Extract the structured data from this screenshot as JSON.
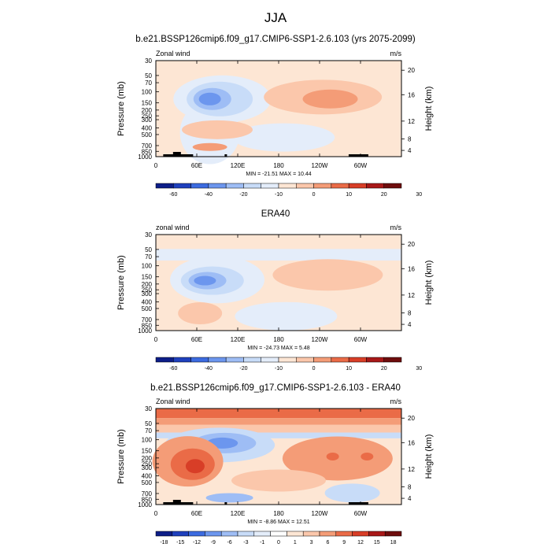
{
  "main_title": "JJA",
  "colors": {
    "main": [
      "#0d1e88",
      "#1f40bd",
      "#3c6be0",
      "#6c96ee",
      "#9ebdf5",
      "#c8dcf8",
      "#e4edfa",
      "#fde6d4",
      "#fbc7ab",
      "#f49c77",
      "#ea6b47",
      "#d83e27",
      "#a81818",
      "#6e0d0d"
    ],
    "diff": [
      "#0d1e88",
      "#1f40bd",
      "#3c6be0",
      "#6c96ee",
      "#9ebdf5",
      "#c8dcf8",
      "#e4edfa",
      "#ffffff",
      "#fde6d4",
      "#fbc7ab",
      "#f49c77",
      "#ea6b47",
      "#d83e27",
      "#a81818",
      "#6e0d0d"
    ]
  },
  "chart_data": [
    {
      "type": "heatmap",
      "title": "b.e21.BSSP126cmip6.f09_g17.CMIP6-SSP1-2.6.103 (yrs 2075-2099)",
      "left_label": "Zonal wind",
      "right_label": "m/s",
      "ylabel": "Pressure (mb)",
      "ylabel_right": "Height (km)",
      "x_ticks": [
        "0",
        "60E",
        "120E",
        "180",
        "120W",
        "60W"
      ],
      "y_ticks": [
        "30",
        "50",
        "70",
        "100",
        "150",
        "200",
        "250",
        "300",
        "400",
        "500",
        "700",
        "850",
        "1000"
      ],
      "height_ticks": [
        "20",
        "16",
        "12",
        "8",
        "4"
      ],
      "stats": "MIN = -21.51  MAX =  10.44",
      "colorbar_labels": [
        "-60",
        "-40",
        "-20",
        "-10",
        "0",
        "10",
        "20",
        "30"
      ]
    },
    {
      "type": "heatmap",
      "title": "ERA40",
      "left_label": "zonal wind",
      "right_label": "m/s",
      "ylabel": "Pressure (mb)",
      "ylabel_right": "Height (km)",
      "x_ticks": [
        "0",
        "60E",
        "120E",
        "180",
        "120W",
        "60W"
      ],
      "y_ticks": [
        "30",
        "50",
        "70",
        "100",
        "150",
        "200",
        "250",
        "300",
        "400",
        "500",
        "700",
        "850",
        "1000"
      ],
      "height_ticks": [
        "20",
        "16",
        "12",
        "8",
        "4"
      ],
      "stats": "MIN = -24.73  MAX =   5.48",
      "colorbar_labels": [
        "-60",
        "-40",
        "-20",
        "-10",
        "0",
        "10",
        "20",
        "30"
      ]
    },
    {
      "type": "heatmap",
      "title": "b.e21.BSSP126cmip6.f09_g17.CMIP6-SSP1-2.6.103 - ERA40",
      "left_label": "Zonal wind",
      "right_label": "m/s",
      "ylabel": "Pressure (mb)",
      "ylabel_right": "Height (km)",
      "x_ticks": [
        "0",
        "60E",
        "120E",
        "180",
        "120W",
        "60W"
      ],
      "y_ticks": [
        "30",
        "50",
        "70",
        "100",
        "150",
        "200",
        "250",
        "300",
        "400",
        "500",
        "700",
        "850",
        "1000"
      ],
      "height_ticks": [
        "20",
        "16",
        "12",
        "8",
        "4"
      ],
      "stats": "MIN =  -8.86  MAX =  12.51",
      "colorbar_labels": [
        "-18",
        "-15",
        "-12",
        "-9",
        "-6",
        "-3",
        "-1",
        "0",
        "1",
        "3",
        "6",
        "9",
        "12",
        "15",
        "18"
      ]
    }
  ]
}
